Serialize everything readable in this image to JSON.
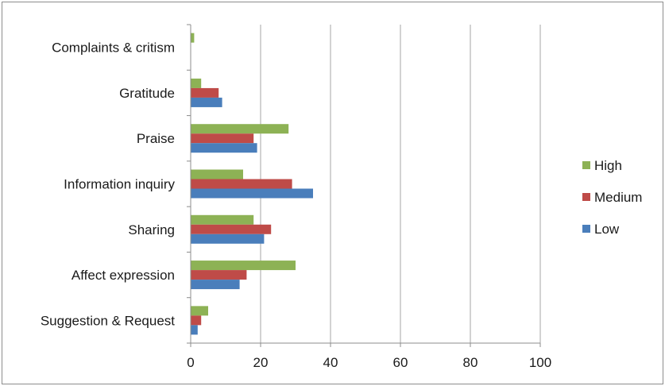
{
  "chart_data": {
    "type": "bar",
    "orientation": "horizontal",
    "categories": [
      "Complaints & critism",
      "Gratitude",
      "Praise",
      "Information inquiry",
      "Sharing",
      "Affect expression",
      "Suggestion & Request"
    ],
    "series": [
      {
        "name": "High",
        "color": "#8db255",
        "values": [
          1,
          3,
          28,
          15,
          18,
          30,
          5
        ]
      },
      {
        "name": "Medium",
        "color": "#bf4b48",
        "values": [
          0,
          8,
          18,
          29,
          23,
          16,
          3
        ]
      },
      {
        "name": "Low",
        "color": "#4a7ebb",
        "values": [
          0,
          9,
          19,
          35,
          21,
          14,
          2
        ]
      }
    ],
    "xlim": [
      0,
      100
    ],
    "x_ticks": [
      0,
      20,
      40,
      60,
      80,
      100
    ],
    "title": "",
    "xlabel": "",
    "ylabel": "",
    "grid": "vertical",
    "legend_position": "right"
  }
}
